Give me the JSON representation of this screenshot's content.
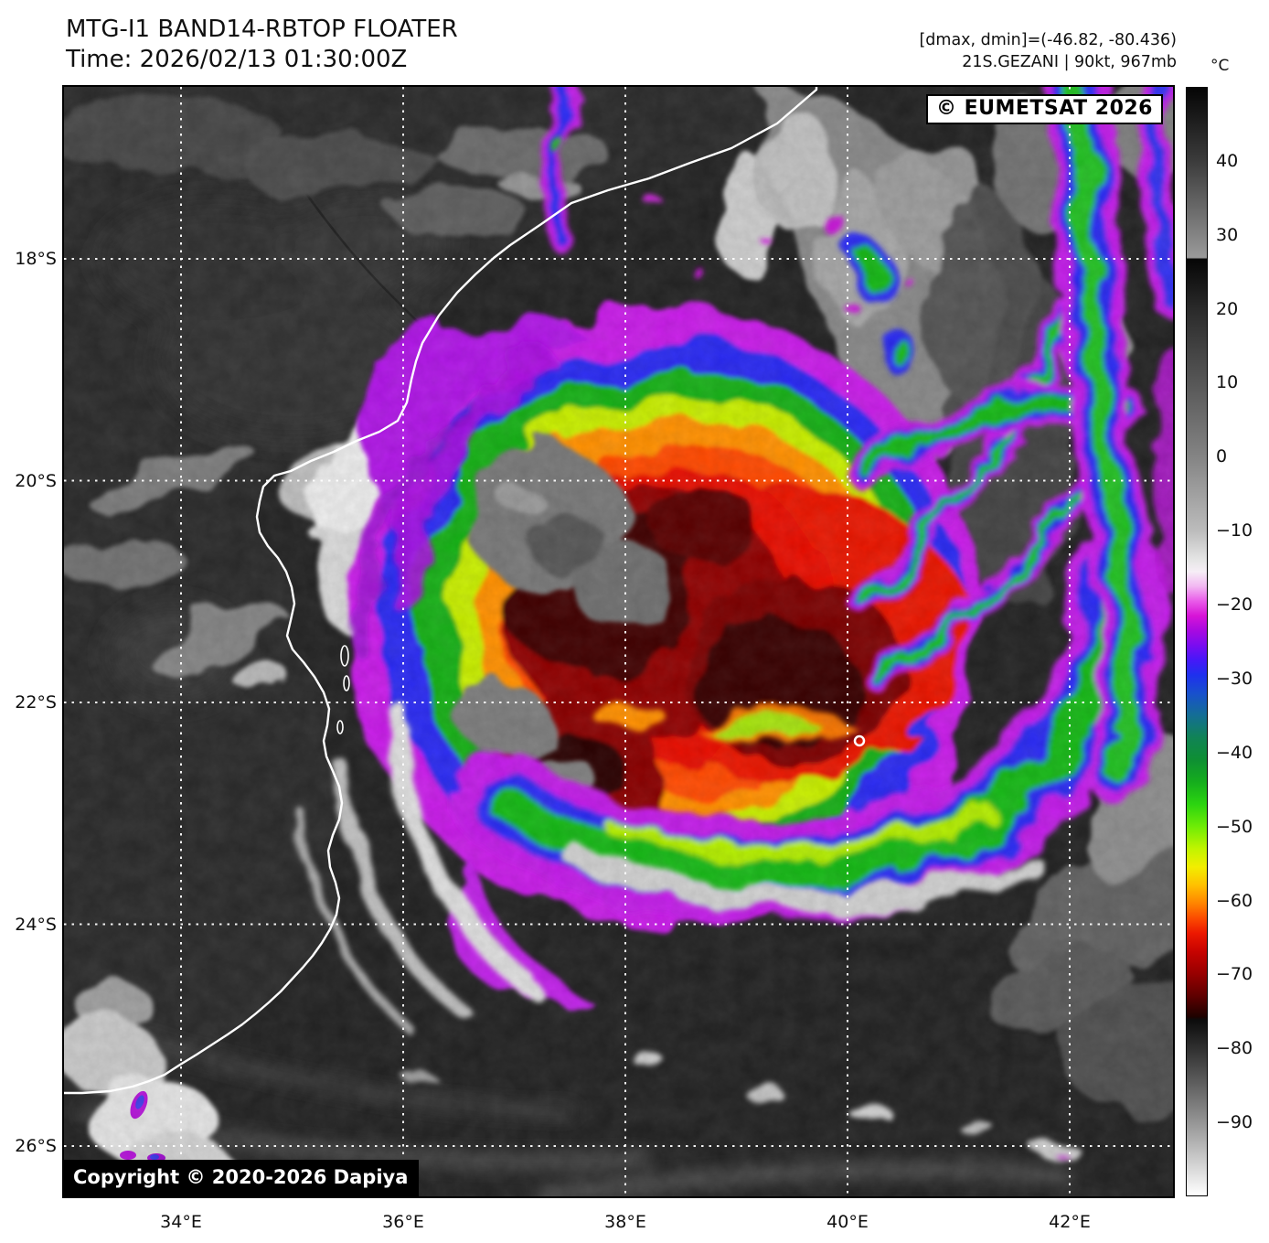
{
  "header": {
    "title": "MTG-I1 BAND14-RBTOP FLOATER",
    "time_line": "Time: 2026/02/13 01:30:00Z",
    "range_line": "[dmax, dmin]=(-46.82, -80.436)",
    "storm_line": "21S.GEZANI | 90kt, 967mb"
  },
  "overlays": {
    "provider_badge": "© EUMETSAT 2026",
    "copyright_badge": "Copyright © 2020-2026 Dapiya"
  },
  "colorbar": {
    "unit": "°C",
    "vmax": 50,
    "vmin": -100,
    "ticks": [
      {
        "value": 40,
        "label": "40"
      },
      {
        "value": 30,
        "label": "30"
      },
      {
        "value": 20,
        "label": "20"
      },
      {
        "value": 10,
        "label": "10"
      },
      {
        "value": 0,
        "label": "0"
      },
      {
        "value": -10,
        "label": "−10"
      },
      {
        "value": -20,
        "label": "−20"
      },
      {
        "value": -30,
        "label": "−30"
      },
      {
        "value": -40,
        "label": "−40"
      },
      {
        "value": -50,
        "label": "−50"
      },
      {
        "value": -60,
        "label": "−60"
      },
      {
        "value": -70,
        "label": "−70"
      },
      {
        "value": -80,
        "label": "−80"
      },
      {
        "value": -90,
        "label": "−90"
      }
    ],
    "stops": [
      {
        "v": 50,
        "c": "#050505"
      },
      {
        "v": 40,
        "c": "#3c3c3c"
      },
      {
        "v": 33,
        "c": "#6e6e6e"
      },
      {
        "v": 27,
        "c": "#9a9a9a"
      },
      {
        "v": 26.8,
        "c": "#060606"
      },
      {
        "v": 20,
        "c": "#2a2a2a"
      },
      {
        "v": 10,
        "c": "#575757"
      },
      {
        "v": 0,
        "c": "#848484"
      },
      {
        "v": -10,
        "c": "#bcbcbc"
      },
      {
        "v": -14,
        "c": "#e6e6e6"
      },
      {
        "v": -15.5,
        "c": "#f6eef6"
      },
      {
        "v": -17.5,
        "c": "#f2b8f2"
      },
      {
        "v": -19.5,
        "c": "#e95ce9"
      },
      {
        "v": -21.5,
        "c": "#d714d7"
      },
      {
        "v": -23.5,
        "c": "#a80ae0"
      },
      {
        "v": -25.5,
        "c": "#7a0cf0"
      },
      {
        "v": -27.5,
        "c": "#4618f8"
      },
      {
        "v": -29.5,
        "c": "#1f30ee"
      },
      {
        "v": -32,
        "c": "#1850cd"
      },
      {
        "v": -35,
        "c": "#146e94"
      },
      {
        "v": -38,
        "c": "#108355"
      },
      {
        "v": -41,
        "c": "#0e8f33"
      },
      {
        "v": -44,
        "c": "#15ad1d"
      },
      {
        "v": -47,
        "c": "#2bd410"
      },
      {
        "v": -50,
        "c": "#6eec06"
      },
      {
        "v": -53,
        "c": "#c0f400"
      },
      {
        "v": -55.5,
        "c": "#f2ee00"
      },
      {
        "v": -58,
        "c": "#ffc000"
      },
      {
        "v": -60.5,
        "c": "#ff8300"
      },
      {
        "v": -62.5,
        "c": "#fb4a00"
      },
      {
        "v": -64.5,
        "c": "#ec1800"
      },
      {
        "v": -67,
        "c": "#c60300"
      },
      {
        "v": -70,
        "c": "#970000"
      },
      {
        "v": -73,
        "c": "#5e0000"
      },
      {
        "v": -75.8,
        "c": "#1e0200"
      },
      {
        "v": -76.2,
        "c": "#0c0c0c"
      },
      {
        "v": -80,
        "c": "#2f2f2f"
      },
      {
        "v": -85,
        "c": "#606060"
      },
      {
        "v": -90,
        "c": "#949494"
      },
      {
        "v": -95,
        "c": "#cacaca"
      },
      {
        "v": -100,
        "c": "#ffffff"
      }
    ]
  },
  "axes": {
    "lon_ticks": [
      {
        "deg": 34,
        "label": "34°E"
      },
      {
        "deg": 36,
        "label": "36°E"
      },
      {
        "deg": 38,
        "label": "38°E"
      },
      {
        "deg": 40,
        "label": "40°E"
      },
      {
        "deg": 42,
        "label": "42°E"
      }
    ],
    "lat_ticks": [
      {
        "deg": 18,
        "label": "18°S"
      },
      {
        "deg": 20,
        "label": "20°S"
      },
      {
        "deg": 22,
        "label": "22°S"
      },
      {
        "deg": 24,
        "label": "24°S"
      },
      {
        "deg": 26,
        "label": "26°S"
      }
    ]
  },
  "palette": {
    "ocean": "#232323",
    "land": "#2b2b2b",
    "grid": "#ffffff",
    "fringe_magenta": "#c81ee8",
    "ring_blue": "#2a2cf2",
    "ring_green": "#17b017",
    "ring_yellow": "#c8ee00",
    "ring_orange": "#ff9000",
    "ring_red": "#e81000",
    "core_darkred": "#8a0200",
    "overshoot_gray": "#787878"
  }
}
